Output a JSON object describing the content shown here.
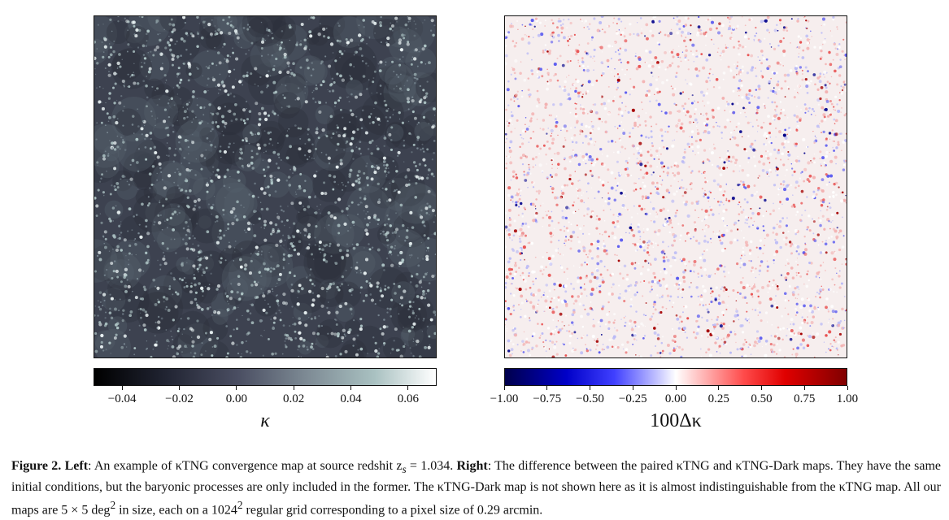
{
  "left_panel": {
    "colorbar": {
      "ticks": [
        "−0.04",
        "−0.02",
        "0.00",
        "0.02",
        "0.04",
        "0.06"
      ],
      "tick_values": [
        -0.04,
        -0.02,
        0.0,
        0.02,
        0.04,
        0.06
      ],
      "range": [
        -0.05,
        0.07
      ],
      "label": "κ",
      "colors": [
        "#000000",
        "#4a4e62",
        "#a9c1c1",
        "#ffffff"
      ]
    }
  },
  "right_panel": {
    "colorbar": {
      "ticks": [
        "−1.00",
        "−0.75",
        "−0.50",
        "−0.25",
        "0.00",
        "0.25",
        "0.50",
        "0.75",
        "1.00"
      ],
      "tick_values": [
        -1.0,
        -0.75,
        -0.5,
        -0.25,
        0.0,
        0.25,
        0.5,
        0.75,
        1.0
      ],
      "range": [
        -1.0,
        1.0
      ],
      "label": "100Δκ",
      "colors": [
        "#00004c",
        "#0000c8",
        "#ffffff",
        "#e00000",
        "#800000"
      ]
    }
  },
  "caption": {
    "fig_label": "Figure 2.",
    "left_label": "Left",
    "left_text": ": An example of κTNG convergence map at source redshit z",
    "subscript": "s",
    "left_text2": " = 1.034. ",
    "right_label": "Right",
    "right_text": ": The difference between the paired κTNG and κTNG-Dark maps. They have the same initial conditions, but the baryonic processes are only included in the former. The κTNG-Dark map is not shown here as it is almost indistinguishable from the κTNG map. All our maps are 5 × 5 deg",
    "sup1": "2",
    "text3": " in size, each on a 1024",
    "sup2": "2",
    "text4": " regular grid corresponding to a pixel size of 0.29 arcmin."
  }
}
